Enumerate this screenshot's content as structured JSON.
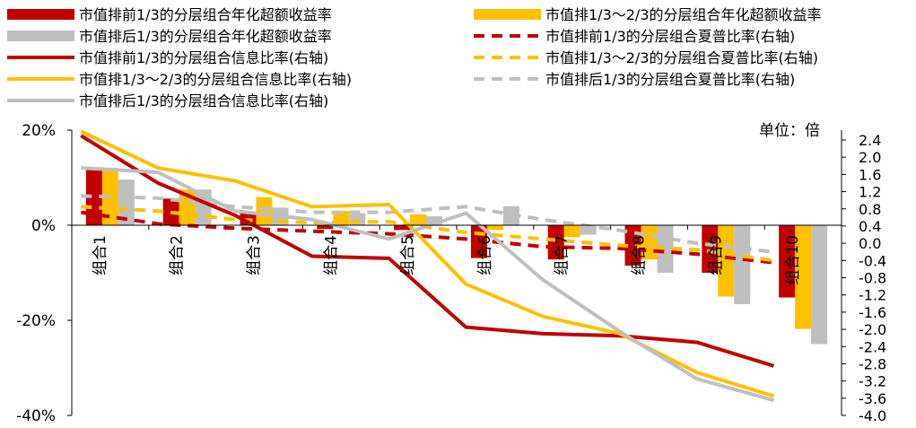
{
  "chart_data": {
    "type": "bar",
    "categories": [
      "组合1",
      "组合2",
      "组合3",
      "组合4",
      "组合5",
      "组合6",
      "组合7",
      "组合8",
      "组合9",
      "组合10"
    ],
    "unit_label": "单位：倍",
    "left_axis": {
      "ticks": [
        "20%",
        "0%",
        "-20%",
        "-40%"
      ],
      "range": [
        -40,
        20
      ]
    },
    "right_axis": {
      "ticks": [
        "2.4",
        "2.0",
        "1.6",
        "1.2",
        "0.8",
        "0.4",
        "0.0",
        "-0.4",
        "-0.8",
        "-1.2",
        "-1.6",
        "-2.0",
        "-2.4",
        "-2.8",
        "-3.2",
        "-3.6",
        "-4.0"
      ],
      "range": [
        -4.0,
        2.4
      ]
    },
    "legend_position": "top",
    "series": [
      {
        "name": "市值排前1/3的分层组合年化超额收益率",
        "type": "bar",
        "axis": "left",
        "color": "#C00000",
        "values": [
          11.6,
          5.6,
          2.7,
          -0.8,
          -1.0,
          -6.9,
          -7.2,
          -8.5,
          -10.0,
          -15.2
        ]
      },
      {
        "name": "市值排1/3～2/3的分层组合年化超额收益率",
        "type": "bar",
        "axis": "left",
        "color": "#FFC000",
        "values": [
          12.1,
          7.5,
          5.9,
          3.0,
          2.3,
          -1.0,
          -2.5,
          -7.2,
          -15.0,
          -21.8
        ]
      },
      {
        "name": "市值排后1/3的分层组合年化超额收益率",
        "type": "bar",
        "axis": "left",
        "color": "#BFBFBF",
        "values": [
          9.6,
          7.5,
          3.7,
          2.5,
          1.9,
          4.0,
          -2.0,
          -10.0,
          -16.6,
          -25.0
        ]
      },
      {
        "name": "市值排前1/3的分层组合夏普比率(右轴)",
        "type": "line",
        "axis": "right",
        "dash": true,
        "color": "#C00000",
        "values": [
          0.72,
          0.45,
          0.35,
          0.28,
          0.22,
          0.1,
          -0.08,
          -0.12,
          -0.25,
          -0.45
        ]
      },
      {
        "name": "市值排1/3～2/3的分层组合夏普比率(右轴)",
        "type": "line",
        "axis": "right",
        "dash": true,
        "color": "#FFC000",
        "values": [
          0.85,
          0.75,
          0.55,
          0.48,
          0.5,
          0.25,
          0.1,
          -0.05,
          -0.15,
          -0.4
        ]
      },
      {
        "name": "市值排后1/3的分层组合夏普比率(右轴)",
        "type": "line",
        "axis": "right",
        "dash": true,
        "color": "#BFBFBF",
        "values": [
          1.1,
          1.05,
          0.85,
          0.72,
          0.72,
          0.85,
          0.55,
          0.3,
          0.0,
          -0.2
        ]
      },
      {
        "name": "市值排前1/3的分层组合信息比率(右轴)",
        "type": "line",
        "axis": "right",
        "dash": false,
        "color": "#C00000",
        "values": [
          2.5,
          1.4,
          0.65,
          -0.3,
          -0.35,
          -1.95,
          -2.1,
          -2.15,
          -2.3,
          -2.85
        ]
      },
      {
        "name": "市值排1/3～2/3的分层组合信息比率(右轴)",
        "type": "line",
        "axis": "right",
        "dash": false,
        "color": "#FFC000",
        "values": [
          2.6,
          1.75,
          1.45,
          0.85,
          0.9,
          -0.95,
          -1.7,
          -2.1,
          -3.0,
          -3.55
        ]
      },
      {
        "name": "市值排后1/3的分层组合信息比率(右轴)",
        "type": "line",
        "axis": "right",
        "dash": false,
        "color": "#BFBFBF",
        "values": [
          1.75,
          1.65,
          0.75,
          0.55,
          0.1,
          0.7,
          -0.85,
          -2.05,
          -3.15,
          -3.65
        ]
      }
    ]
  }
}
